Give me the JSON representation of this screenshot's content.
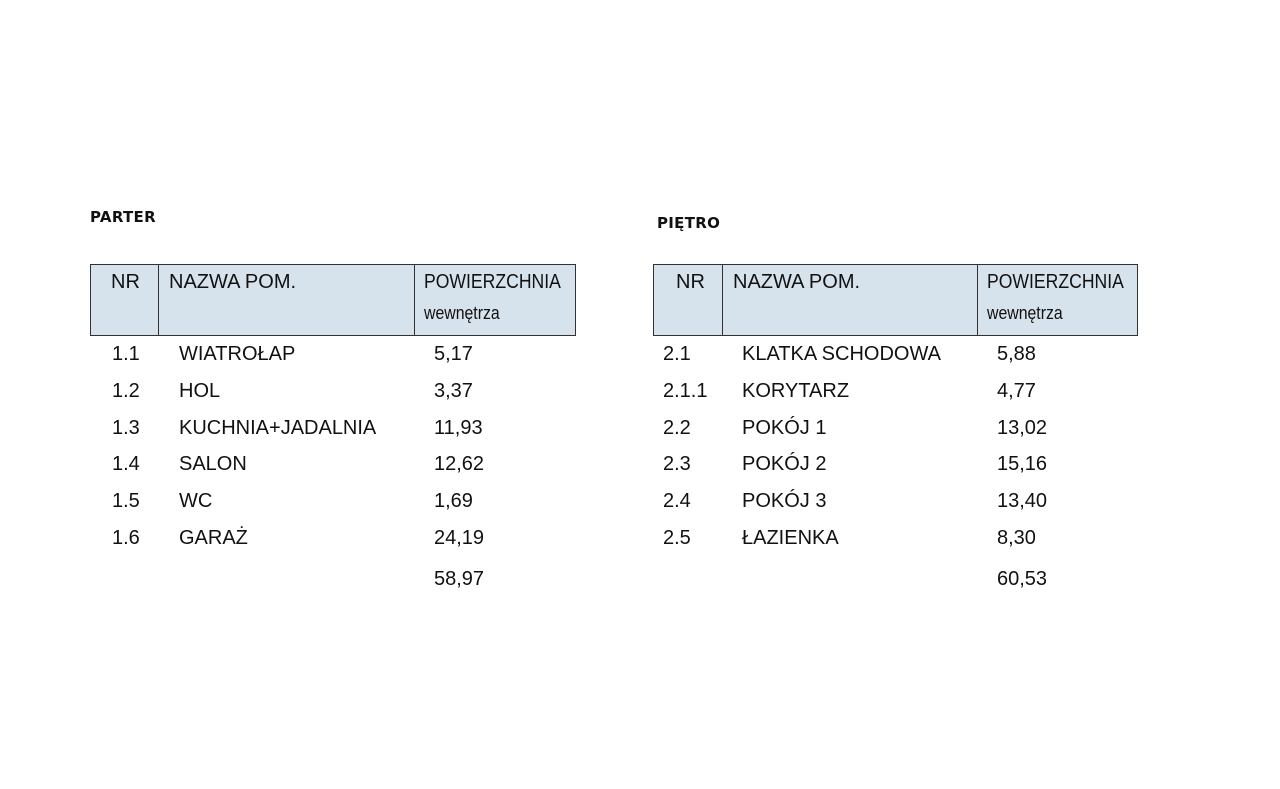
{
  "tables": [
    {
      "title": "PARTER",
      "headers": {
        "nr": "NR",
        "name": "NAZWA POM.",
        "area": "POWIERZCHNIA",
        "area_sub": "wewnętrza"
      },
      "rows": [
        {
          "nr": "1.1",
          "name": "WIATROŁAP",
          "area": "5,17"
        },
        {
          "nr": "1.2",
          "name": "HOL",
          "area": "3,37"
        },
        {
          "nr": "1.3",
          "name": "KUCHNIA+JADALNIA",
          "area": "11,93"
        },
        {
          "nr": "1.4",
          "name": "SALON",
          "area": "12,62"
        },
        {
          "nr": "1.5",
          "name": "WC",
          "area": "1,69"
        },
        {
          "nr": "1.6",
          "name": "GARAŻ",
          "area": "24,19"
        }
      ],
      "total": "58,97"
    },
    {
      "title": "PIĘTRO",
      "headers": {
        "nr": "NR",
        "name": "NAZWA POM.",
        "area": "POWIERZCHNIA",
        "area_sub": "wewnętrza"
      },
      "rows": [
        {
          "nr": "2.1",
          "name": "KLATKA SCHODOWA",
          "area": "5,88"
        },
        {
          "nr": "2.1.1",
          "name": "KORYTARZ",
          "area": "4,77"
        },
        {
          "nr": "2.2",
          "name": "POKÓJ 1",
          "area": "13,02"
        },
        {
          "nr": "2.3",
          "name": "POKÓJ 2",
          "area": "15,16"
        },
        {
          "nr": "2.4",
          "name": "POKÓJ 3",
          "area": "13,40"
        },
        {
          "nr": "2.5",
          "name": "ŁAZIENKA",
          "area": "8,30"
        }
      ],
      "total": "60,53"
    }
  ],
  "colors": {
    "header_bg": "#d6e3ec",
    "border": "#333333"
  }
}
